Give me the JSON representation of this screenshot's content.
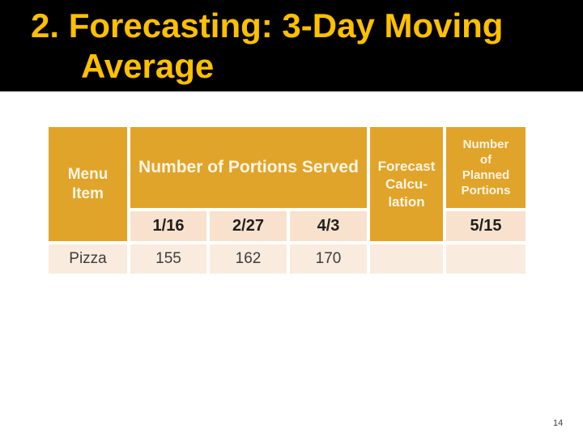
{
  "slide": {
    "title_line1": "2. Forecasting: 3-Day Moving",
    "title_line2": "Average",
    "page_number": "14"
  },
  "table": {
    "header": {
      "menu_item": "Menu\nItem",
      "portions_served": "Number of Portions Served",
      "forecast_calculation": "Forecast\nCalcu-\nlation",
      "planned_portions": "Number\nof\nPlanned\nPortions"
    },
    "dates": [
      "1/16",
      "2/27",
      "4/3"
    ],
    "planned_date": "5/15",
    "rows": [
      {
        "menu_item": "Pizza",
        "portions": [
          "155",
          "162",
          "170"
        ],
        "forecast": "",
        "planned": ""
      }
    ]
  },
  "colors": {
    "band_black": "#000000",
    "title_gold": "#FFC000",
    "header_amber": "#E1A42A",
    "header_text": "#FCF5E4",
    "date_row_bg": "#F8E2CE",
    "body_row_bg": "#FAEBDF"
  }
}
